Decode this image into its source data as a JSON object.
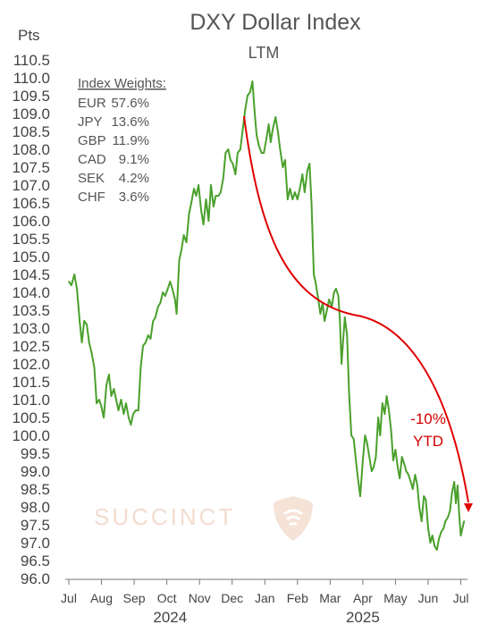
{
  "colors": {
    "line": "#4aa02c",
    "annotation": "#e00000",
    "text": "#555555",
    "watermark": "#f5ddd0"
  },
  "watermark": {
    "text": "SUCCINCT",
    "icon": "shield-logo-icon"
  },
  "weights": {
    "title": "Index Weights:",
    "items": [
      {
        "currency": "EUR",
        "weight": "57.6%"
      },
      {
        "currency": "JPY",
        "weight": "13.6%"
      },
      {
        "currency": "GBP",
        "weight": "11.9%"
      },
      {
        "currency": "CAD",
        "weight": "9.1%"
      },
      {
        "currency": "SEK",
        "weight": "4.2%"
      },
      {
        "currency": "CHF",
        "weight": "3.6%"
      }
    ]
  },
  "annotation": {
    "line1": "-10%",
    "line2": "YTD"
  },
  "chart_data": {
    "type": "line",
    "title": "DXY Dollar Index",
    "subtitle": "LTM",
    "ylabel": "Pts",
    "ylim": [
      96.0,
      110.5
    ],
    "yticks": [
      96.0,
      96.5,
      97.0,
      97.5,
      98.0,
      98.5,
      99.0,
      99.5,
      100.0,
      100.5,
      101.0,
      101.5,
      102.0,
      102.5,
      103.0,
      103.5,
      104.0,
      104.5,
      105.0,
      105.5,
      106.0,
      106.5,
      107.0,
      107.5,
      108.0,
      108.5,
      109.0,
      109.5,
      110.0,
      110.5
    ],
    "ytick_labels": [
      "96.0",
      "96.5",
      "97.0",
      "97.5",
      "98.0",
      "98.5",
      "99.0",
      "99.5",
      "100.0",
      "100.5",
      "101.0",
      "101.5",
      "102.0",
      "102.5",
      "103.0",
      "103.5",
      "104.0",
      "104.5",
      "105.0",
      "105.5",
      "106.0",
      "106.5",
      "107.0",
      "107.5",
      "108.0",
      "108.5",
      "109.0",
      "109.5",
      "110.0",
      "110.5"
    ],
    "xlim": [
      0,
      12.15
    ],
    "xticks": [
      0,
      1,
      2,
      3,
      4,
      5,
      6,
      7,
      8,
      9,
      10,
      11,
      12
    ],
    "xtick_labels": [
      "Jul",
      "Aug",
      "Sep",
      "Oct",
      "Nov",
      "Dec",
      "Jan",
      "Feb",
      "Mar",
      "Apr",
      "May",
      "Jun",
      "Jul"
    ],
    "year_labels": [
      {
        "label": "2024",
        "at": 3.1
      },
      {
        "label": "2025",
        "at": 9.0
      }
    ],
    "grid": false,
    "series": [
      {
        "values": [
          [
            0.0,
            104.3
          ],
          [
            0.08,
            104.2
          ],
          [
            0.17,
            104.5
          ],
          [
            0.25,
            104.1
          ],
          [
            0.33,
            103.2
          ],
          [
            0.4,
            102.6
          ],
          [
            0.47,
            103.2
          ],
          [
            0.55,
            103.1
          ],
          [
            0.62,
            102.6
          ],
          [
            0.7,
            102.3
          ],
          [
            0.78,
            101.9
          ],
          [
            0.85,
            100.9
          ],
          [
            0.93,
            101.0
          ],
          [
            1.0,
            100.8
          ],
          [
            1.07,
            100.5
          ],
          [
            1.15,
            101.4
          ],
          [
            1.23,
            101.7
          ],
          [
            1.3,
            101.1
          ],
          [
            1.38,
            101.3
          ],
          [
            1.45,
            101.0
          ],
          [
            1.52,
            100.7
          ],
          [
            1.6,
            101.0
          ],
          [
            1.68,
            100.6
          ],
          [
            1.75,
            100.9
          ],
          [
            1.83,
            100.5
          ],
          [
            1.9,
            100.3
          ],
          [
            1.97,
            100.6
          ],
          [
            2.05,
            100.7
          ],
          [
            2.13,
            100.7
          ],
          [
            2.2,
            101.9
          ],
          [
            2.27,
            102.5
          ],
          [
            2.35,
            102.6
          ],
          [
            2.43,
            102.8
          ],
          [
            2.5,
            102.7
          ],
          [
            2.58,
            103.2
          ],
          [
            2.65,
            103.3
          ],
          [
            2.73,
            103.6
          ],
          [
            2.8,
            103.7
          ],
          [
            2.88,
            104.0
          ],
          [
            2.95,
            103.9
          ],
          [
            3.03,
            104.1
          ],
          [
            3.1,
            104.3
          ],
          [
            3.17,
            104.1
          ],
          [
            3.25,
            103.8
          ],
          [
            3.3,
            103.4
          ],
          [
            3.38,
            104.9
          ],
          [
            3.45,
            105.2
          ],
          [
            3.52,
            105.6
          ],
          [
            3.6,
            105.4
          ],
          [
            3.68,
            106.2
          ],
          [
            3.75,
            106.5
          ],
          [
            3.83,
            106.9
          ],
          [
            3.9,
            106.7
          ],
          [
            3.97,
            107.0
          ],
          [
            4.05,
            106.3
          ],
          [
            4.12,
            105.9
          ],
          [
            4.2,
            106.6
          ],
          [
            4.28,
            106.0
          ],
          [
            4.35,
            107.0
          ],
          [
            4.43,
            106.4
          ],
          [
            4.5,
            106.7
          ],
          [
            4.58,
            106.7
          ],
          [
            4.65,
            106.8
          ],
          [
            4.73,
            107.2
          ],
          [
            4.8,
            107.9
          ],
          [
            4.88,
            108.0
          ],
          [
            4.95,
            107.7
          ],
          [
            5.02,
            107.6
          ],
          [
            5.1,
            107.3
          ],
          [
            5.17,
            107.9
          ],
          [
            5.25,
            108.0
          ],
          [
            5.33,
            108.6
          ],
          [
            5.4,
            109.1
          ],
          [
            5.47,
            109.5
          ],
          [
            5.55,
            109.6
          ],
          [
            5.62,
            109.9
          ],
          [
            5.7,
            108.9
          ],
          [
            5.75,
            108.4
          ],
          [
            5.82,
            108.1
          ],
          [
            5.9,
            107.9
          ],
          [
            5.97,
            107.9
          ],
          [
            6.05,
            108.3
          ],
          [
            6.12,
            108.7
          ],
          [
            6.18,
            108.2
          ],
          [
            6.25,
            108.6
          ],
          [
            6.33,
            108.9
          ],
          [
            6.4,
            108.5
          ],
          [
            6.47,
            108.0
          ],
          [
            6.55,
            107.5
          ],
          [
            6.62,
            107.7
          ],
          [
            6.7,
            106.6
          ],
          [
            6.77,
            106.9
          ],
          [
            6.85,
            106.6
          ],
          [
            6.92,
            106.8
          ],
          [
            7.0,
            106.6
          ],
          [
            7.07,
            106.9
          ],
          [
            7.15,
            107.3
          ],
          [
            7.22,
            106.8
          ],
          [
            7.3,
            107.4
          ],
          [
            7.37,
            107.6
          ],
          [
            7.43,
            106.5
          ],
          [
            7.5,
            104.5
          ],
          [
            7.55,
            104.3
          ],
          [
            7.62,
            103.9
          ],
          [
            7.7,
            103.4
          ],
          [
            7.77,
            103.7
          ],
          [
            7.83,
            103.2
          ],
          [
            7.9,
            103.5
          ],
          [
            7.97,
            103.8
          ],
          [
            8.05,
            103.6
          ],
          [
            8.12,
            104.0
          ],
          [
            8.18,
            104.1
          ],
          [
            8.25,
            103.9
          ],
          [
            8.3,
            103.2
          ],
          [
            8.35,
            102.0
          ],
          [
            8.4,
            102.7
          ],
          [
            8.45,
            103.3
          ],
          [
            8.52,
            102.8
          ],
          [
            8.58,
            101.2
          ],
          [
            8.65,
            100.0
          ],
          [
            8.72,
            99.9
          ],
          [
            8.78,
            99.4
          ],
          [
            8.85,
            98.8
          ],
          [
            8.92,
            98.3
          ],
          [
            9.0,
            99.3
          ],
          [
            9.07,
            100.0
          ],
          [
            9.13,
            99.8
          ],
          [
            9.2,
            99.4
          ],
          [
            9.27,
            99.0
          ],
          [
            9.33,
            99.1
          ],
          [
            9.4,
            99.4
          ],
          [
            9.47,
            100.5
          ],
          [
            9.53,
            100.0
          ],
          [
            9.6,
            100.9
          ],
          [
            9.67,
            100.6
          ],
          [
            9.73,
            101.1
          ],
          [
            9.8,
            100.7
          ],
          [
            9.87,
            100.1
          ],
          [
            9.93,
            99.3
          ],
          [
            10.0,
            99.6
          ],
          [
            10.07,
            99.1
          ],
          [
            10.13,
            98.8
          ],
          [
            10.2,
            99.4
          ],
          [
            10.27,
            99.2
          ],
          [
            10.33,
            99.0
          ],
          [
            10.4,
            98.9
          ],
          [
            10.47,
            98.7
          ],
          [
            10.53,
            98.5
          ],
          [
            10.6,
            98.9
          ],
          [
            10.67,
            98.6
          ],
          [
            10.73,
            98.0
          ],
          [
            10.8,
            97.6
          ],
          [
            10.87,
            98.3
          ],
          [
            10.93,
            98.2
          ],
          [
            11.0,
            97.4
          ],
          [
            11.07,
            97.0
          ],
          [
            11.13,
            97.2
          ],
          [
            11.2,
            96.9
          ],
          [
            11.27,
            96.8
          ],
          [
            11.33,
            97.1
          ],
          [
            11.4,
            97.3
          ],
          [
            11.47,
            97.4
          ],
          [
            11.53,
            97.6
          ],
          [
            11.6,
            97.7
          ],
          [
            11.67,
            97.9
          ],
          [
            11.73,
            98.4
          ],
          [
            11.8,
            98.7
          ],
          [
            11.85,
            98.1
          ],
          [
            11.9,
            98.6
          ],
          [
            11.95,
            97.8
          ],
          [
            12.0,
            97.2
          ],
          [
            12.05,
            97.4
          ],
          [
            12.1,
            97.6
          ]
        ]
      }
    ]
  }
}
